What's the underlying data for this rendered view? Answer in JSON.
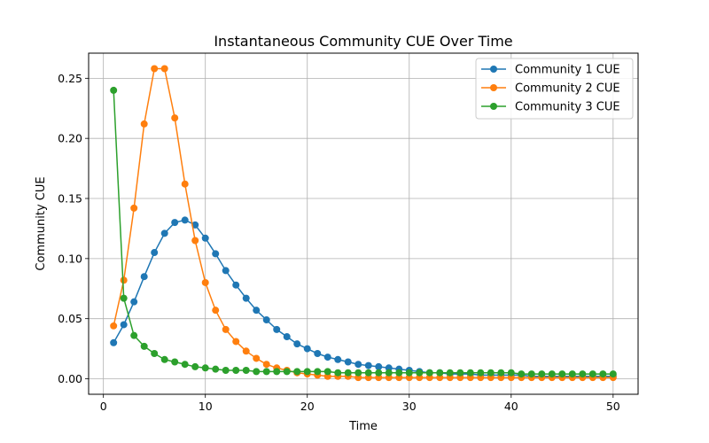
{
  "chart_data": {
    "type": "line",
    "title": "Instantaneous Community CUE Over Time",
    "xlabel": "Time",
    "ylabel": "Community CUE",
    "xlim": [
      -1.45,
      52.45
    ],
    "ylim": [
      -0.0129,
      0.2709
    ],
    "xticks": [
      0,
      10,
      20,
      30,
      40,
      50
    ],
    "yticks": [
      0.0,
      0.05,
      0.1,
      0.15,
      0.2,
      0.25
    ],
    "ytick_labels": [
      "0.00",
      "0.05",
      "0.10",
      "0.15",
      "0.20",
      "0.25"
    ],
    "grid": true,
    "legend_position": "top-right",
    "x": [
      1,
      2,
      3,
      4,
      5,
      6,
      7,
      8,
      9,
      10,
      11,
      12,
      13,
      14,
      15,
      16,
      17,
      18,
      19,
      20,
      21,
      22,
      23,
      24,
      25,
      26,
      27,
      28,
      29,
      30,
      31,
      32,
      33,
      34,
      35,
      36,
      37,
      38,
      39,
      40,
      41,
      42,
      43,
      44,
      45,
      46,
      47,
      48,
      49,
      50
    ],
    "series": [
      {
        "name": "Community 1 CUE",
        "color": "#1f77b4",
        "values": [
          0.03,
          0.045,
          0.064,
          0.085,
          0.105,
          0.121,
          0.13,
          0.132,
          0.128,
          0.117,
          0.104,
          0.09,
          0.078,
          0.067,
          0.057,
          0.049,
          0.041,
          0.035,
          0.029,
          0.025,
          0.021,
          0.018,
          0.016,
          0.014,
          0.012,
          0.011,
          0.01,
          0.009,
          0.008,
          0.007,
          0.006,
          0.005,
          0.005,
          0.004,
          0.004,
          0.004,
          0.003,
          0.003,
          0.003,
          0.003,
          0.003,
          0.002,
          0.002,
          0.002,
          0.002,
          0.002,
          0.002,
          0.002,
          0.002,
          0.002
        ]
      },
      {
        "name": "Community 2 CUE",
        "color": "#ff7f0e",
        "values": [
          0.044,
          0.082,
          0.142,
          0.212,
          0.258,
          0.258,
          0.217,
          0.162,
          0.115,
          0.08,
          0.057,
          0.041,
          0.031,
          0.023,
          0.017,
          0.012,
          0.009,
          0.007,
          0.005,
          0.004,
          0.003,
          0.002,
          0.002,
          0.002,
          0.001,
          0.001,
          0.001,
          0.001,
          0.001,
          0.001,
          0.001,
          0.001,
          0.001,
          0.001,
          0.001,
          0.001,
          0.001,
          0.001,
          0.001,
          0.001,
          0.001,
          0.001,
          0.001,
          0.001,
          0.001,
          0.001,
          0.001,
          0.001,
          0.001,
          0.001
        ]
      },
      {
        "name": "Community 3 CUE",
        "color": "#2ca02c",
        "values": [
          0.24,
          0.067,
          0.036,
          0.027,
          0.021,
          0.016,
          0.014,
          0.012,
          0.01,
          0.009,
          0.008,
          0.007,
          0.007,
          0.007,
          0.006,
          0.006,
          0.006,
          0.006,
          0.006,
          0.006,
          0.006,
          0.006,
          0.005,
          0.005,
          0.005,
          0.005,
          0.005,
          0.005,
          0.005,
          0.005,
          0.005,
          0.005,
          0.005,
          0.005,
          0.005,
          0.005,
          0.005,
          0.005,
          0.005,
          0.005,
          0.004,
          0.004,
          0.004,
          0.004,
          0.004,
          0.004,
          0.004,
          0.004,
          0.004,
          0.004
        ]
      }
    ]
  }
}
